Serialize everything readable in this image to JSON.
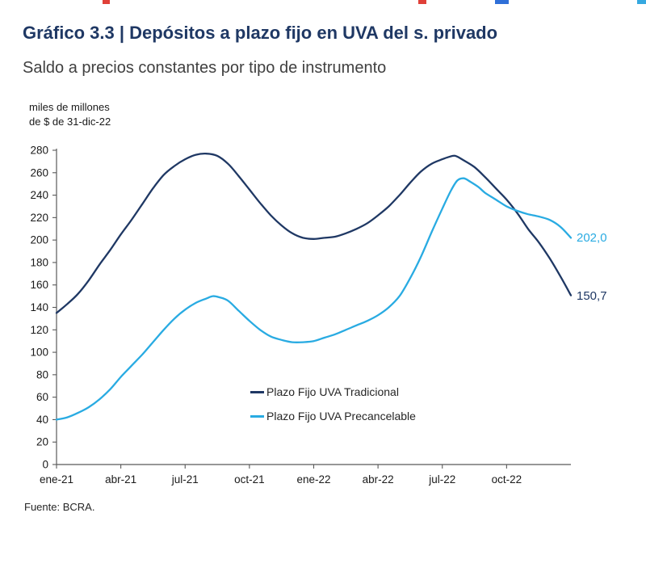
{
  "header": {
    "title": "Gráfico 3.3 | Depósitos a plazo fijo en UVA del s. privado",
    "subtitle": "Saldo a precios constantes por tipo de instrumento"
  },
  "chart_data": {
    "type": "line",
    "title": "Depósitos a plazo fijo en UVA del s. privado",
    "subtitle": "Saldo a precios constantes por tipo de instrumento",
    "unit_label_lines": [
      "miles de millones",
      "de $ de 31-dic-22"
    ],
    "x_axis": {
      "tick_labels": [
        "ene-21",
        "abr-21",
        "jul-21",
        "oct-21",
        "ene-22",
        "abr-22",
        "jul-22",
        "oct-22"
      ],
      "tick_positions_months": [
        0,
        3,
        6,
        9,
        12,
        15,
        18,
        21
      ],
      "domain_months": [
        0,
        24
      ]
    },
    "y_axis": {
      "min": 0,
      "max": 280,
      "step": 20
    },
    "grid": false,
    "legend_position": "inside-bottom-center",
    "series": [
      {
        "name": "Plazo Fijo UVA Tradicional",
        "color": "#1f3864",
        "end_label": "150,7",
        "end_value": 150.7,
        "points": [
          [
            0,
            135
          ],
          [
            0.5,
            143
          ],
          [
            1,
            152
          ],
          [
            1.5,
            164
          ],
          [
            2,
            178
          ],
          [
            2.5,
            191
          ],
          [
            3,
            205
          ],
          [
            3.5,
            218
          ],
          [
            4,
            232
          ],
          [
            4.5,
            246
          ],
          [
            5,
            258
          ],
          [
            5.5,
            266
          ],
          [
            6,
            272
          ],
          [
            6.5,
            276
          ],
          [
            7,
            277
          ],
          [
            7.5,
            275
          ],
          [
            8,
            268
          ],
          [
            8.5,
            257
          ],
          [
            9,
            245
          ],
          [
            9.5,
            233
          ],
          [
            10,
            222
          ],
          [
            10.5,
            213
          ],
          [
            11,
            206
          ],
          [
            11.5,
            202
          ],
          [
            12,
            201
          ],
          [
            12.5,
            202
          ],
          [
            13,
            203
          ],
          [
            13.5,
            206
          ],
          [
            14,
            210
          ],
          [
            14.5,
            215
          ],
          [
            15,
            222
          ],
          [
            15.5,
            230
          ],
          [
            16,
            240
          ],
          [
            16.5,
            251
          ],
          [
            17,
            261
          ],
          [
            17.5,
            268
          ],
          [
            18,
            272
          ],
          [
            18.3,
            274
          ],
          [
            18.6,
            275
          ],
          [
            19,
            271
          ],
          [
            19.5,
            265
          ],
          [
            20,
            256
          ],
          [
            20.5,
            246
          ],
          [
            21,
            236
          ],
          [
            21.5,
            224
          ],
          [
            22,
            210
          ],
          [
            22.5,
            198
          ],
          [
            23,
            184
          ],
          [
            23.5,
            168
          ],
          [
            24,
            150.7
          ]
        ]
      },
      {
        "name": "Plazo Fijo UVA Precancelable",
        "color": "#29abe2",
        "end_label": "202,0",
        "end_value": 202.0,
        "points": [
          [
            0,
            40
          ],
          [
            0.5,
            42
          ],
          [
            1,
            46
          ],
          [
            1.5,
            51
          ],
          [
            2,
            58
          ],
          [
            2.5,
            67
          ],
          [
            3,
            78
          ],
          [
            3.5,
            88
          ],
          [
            4,
            98
          ],
          [
            4.5,
            109
          ],
          [
            5,
            120
          ],
          [
            5.5,
            130
          ],
          [
            6,
            138
          ],
          [
            6.5,
            144
          ],
          [
            7,
            148
          ],
          [
            7.3,
            150
          ],
          [
            7.6,
            149
          ],
          [
            8,
            146
          ],
          [
            8.5,
            137
          ],
          [
            9,
            128
          ],
          [
            9.5,
            120
          ],
          [
            10,
            114
          ],
          [
            10.5,
            111
          ],
          [
            11,
            109
          ],
          [
            11.5,
            109
          ],
          [
            12,
            110
          ],
          [
            12.5,
            113
          ],
          [
            13,
            116
          ],
          [
            13.5,
            120
          ],
          [
            14,
            124
          ],
          [
            14.5,
            128
          ],
          [
            15,
            133
          ],
          [
            15.5,
            140
          ],
          [
            16,
            150
          ],
          [
            16.5,
            166
          ],
          [
            17,
            185
          ],
          [
            17.5,
            207
          ],
          [
            18,
            228
          ],
          [
            18.4,
            244
          ],
          [
            18.7,
            253
          ],
          [
            19,
            255
          ],
          [
            19.3,
            252
          ],
          [
            19.7,
            247
          ],
          [
            20,
            242
          ],
          [
            20.5,
            236
          ],
          [
            21,
            230
          ],
          [
            21.5,
            226
          ],
          [
            22,
            223
          ],
          [
            22.5,
            221
          ],
          [
            23,
            218
          ],
          [
            23.5,
            212
          ],
          [
            24,
            202
          ]
        ]
      }
    ]
  },
  "artifacts": [
    {
      "x": 127,
      "width": 9,
      "color": "#e04038"
    },
    {
      "x": 518,
      "width": 10,
      "color": "#e04038"
    },
    {
      "x": 613,
      "width": 17,
      "color": "#2f6fd8"
    },
    {
      "x": 789,
      "width": 11,
      "color": "#35a8e0"
    }
  ],
  "footer": {
    "source": "Fuente: BCRA."
  }
}
